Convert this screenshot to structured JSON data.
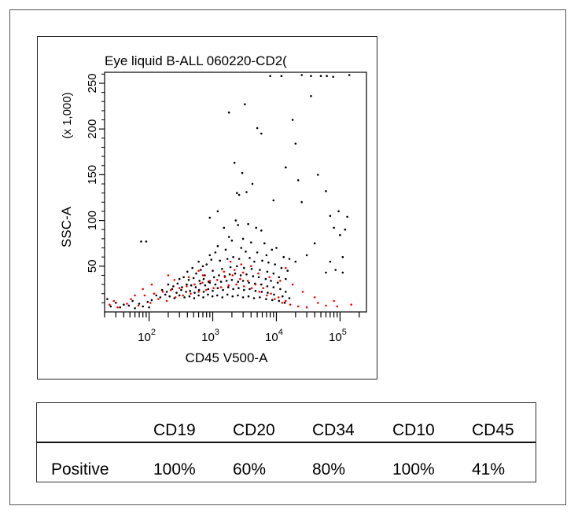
{
  "chart_data": {
    "type": "scatter",
    "title": "Eye liquid  B-ALL 060220-CD2(",
    "xlabel": "CD45 V500-A",
    "ylabel": "SSC-A",
    "y_multiplier": "(x 1,000)",
    "x_scale": "log",
    "xlim": [
      20,
      260000
    ],
    "ylim": [
      0,
      262
    ],
    "x_ticks": [
      {
        "value": 100,
        "base": "10",
        "exp": "2"
      },
      {
        "value": 1000,
        "base": "10",
        "exp": "3"
      },
      {
        "value": 10000,
        "base": "10",
        "exp": "4"
      },
      {
        "value": 100000,
        "base": "10",
        "exp": "5"
      }
    ],
    "y_ticks": [
      "50",
      "100",
      "150",
      "200",
      "250"
    ],
    "y_tick_values": [
      50,
      100,
      150,
      200,
      250
    ],
    "grid": false,
    "legend": "none",
    "series": [
      {
        "color": "#000000",
        "marker": "dot",
        "points": [
          [
            35000,
            258
          ],
          [
            50000,
            258
          ],
          [
            62000,
            258
          ],
          [
            78000,
            257
          ],
          [
            8000,
            258
          ],
          [
            12000,
            258
          ],
          [
            25000,
            259
          ],
          [
            140000,
            259
          ],
          [
            1800,
            218
          ],
          [
            3200,
            227
          ],
          [
            5000,
            201
          ],
          [
            5800,
            195
          ],
          [
            18000,
            210
          ],
          [
            20000,
            184
          ],
          [
            35000,
            236
          ],
          [
            900,
            103
          ],
          [
            1200,
            110
          ],
          [
            2200,
            163
          ],
          [
            2900,
            152
          ],
          [
            2400,
            130
          ],
          [
            2600,
            128
          ],
          [
            3400,
            131
          ],
          [
            4200,
            140
          ],
          [
            9000,
            122
          ],
          [
            14000,
            158
          ],
          [
            22000,
            144
          ],
          [
            45000,
            150
          ],
          [
            25000,
            120
          ],
          [
            60000,
            132
          ],
          [
            70000,
            105
          ],
          [
            95000,
            110
          ],
          [
            130000,
            104
          ],
          [
            80000,
            92
          ],
          [
            100000,
            84
          ],
          [
            120000,
            90
          ],
          [
            110000,
            60
          ],
          [
            70000,
            55
          ],
          [
            85000,
            46
          ],
          [
            60000,
            43
          ],
          [
            110000,
            43
          ],
          [
            40000,
            75
          ],
          [
            30000,
            62
          ],
          [
            75,
            77
          ],
          [
            90,
            77
          ],
          [
            1500,
            92
          ],
          [
            1800,
            82
          ],
          [
            2300,
            100
          ],
          [
            2500,
            95
          ],
          [
            3600,
            96
          ],
          [
            4800,
            92
          ],
          [
            5800,
            89
          ],
          [
            2000,
            78
          ],
          [
            3000,
            80
          ],
          [
            4000,
            76
          ],
          [
            6500,
            75
          ],
          [
            1200,
            72
          ],
          [
            1100,
            65
          ],
          [
            900,
            62
          ],
          [
            1600,
            68
          ],
          [
            2800,
            70
          ],
          [
            3300,
            66
          ],
          [
            5000,
            65
          ],
          [
            7000,
            62
          ],
          [
            8500,
            68
          ],
          [
            10000,
            70
          ],
          [
            13000,
            60
          ],
          [
            16000,
            58
          ],
          [
            20000,
            55
          ],
          [
            600,
            55
          ],
          [
            700,
            50
          ],
          [
            800,
            52
          ],
          [
            950,
            57
          ],
          [
            1300,
            56
          ],
          [
            1700,
            58
          ],
          [
            2100,
            60
          ],
          [
            2600,
            58
          ],
          [
            3800,
            59
          ],
          [
            4500,
            55
          ],
          [
            6000,
            56
          ],
          [
            7500,
            54
          ],
          [
            9500,
            52
          ],
          [
            12000,
            48
          ],
          [
            15000,
            45
          ],
          [
            400,
            44
          ],
          [
            480,
            48
          ],
          [
            550,
            42
          ],
          [
            650,
            46
          ],
          [
            750,
            40
          ],
          [
            1000,
            45
          ],
          [
            1400,
            47
          ],
          [
            1900,
            49
          ],
          [
            2400,
            50
          ],
          [
            3100,
            48
          ],
          [
            4100,
            47
          ],
          [
            5500,
            46
          ],
          [
            7200,
            44
          ],
          [
            9000,
            42
          ],
          [
            11000,
            38
          ],
          [
            14000,
            36
          ],
          [
            300,
            36
          ],
          [
            350,
            38
          ],
          [
            420,
            35
          ],
          [
            500,
            37
          ],
          [
            620,
            34
          ],
          [
            720,
            36
          ],
          [
            860,
            33
          ],
          [
            1050,
            38
          ],
          [
            1250,
            40
          ],
          [
            1550,
            39
          ],
          [
            1850,
            41
          ],
          [
            2250,
            42
          ],
          [
            2750,
            40
          ],
          [
            3400,
            41
          ],
          [
            4300,
            39
          ],
          [
            5300,
            38
          ],
          [
            6800,
            36
          ],
          [
            8200,
            34
          ],
          [
            10500,
            32
          ],
          [
            200,
            30
          ],
          [
            240,
            28
          ],
          [
            280,
            31
          ],
          [
            330,
            27
          ],
          [
            390,
            30
          ],
          [
            460,
            29
          ],
          [
            540,
            27
          ],
          [
            640,
            31
          ],
          [
            760,
            29
          ],
          [
            900,
            32
          ],
          [
            1100,
            30
          ],
          [
            1350,
            33
          ],
          [
            1650,
            34
          ],
          [
            2000,
            35
          ],
          [
            2500,
            33
          ],
          [
            3000,
            34
          ],
          [
            3700,
            32
          ],
          [
            4600,
            31
          ],
          [
            5800,
            30
          ],
          [
            7200,
            28
          ],
          [
            9000,
            27
          ],
          [
            11500,
            25
          ],
          [
            14000,
            22
          ],
          [
            160,
            24
          ],
          [
            190,
            22
          ],
          [
            230,
            25
          ],
          [
            270,
            21
          ],
          [
            320,
            24
          ],
          [
            380,
            22
          ],
          [
            440,
            23
          ],
          [
            520,
            21
          ],
          [
            610,
            24
          ],
          [
            720,
            22
          ],
          [
            850,
            25
          ],
          [
            1000,
            23
          ],
          [
            1200,
            26
          ],
          [
            1450,
            24
          ],
          [
            1750,
            27
          ],
          [
            2100,
            25
          ],
          [
            2550,
            26
          ],
          [
            3100,
            24
          ],
          [
            3800,
            25
          ],
          [
            4700,
            23
          ],
          [
            5900,
            22
          ],
          [
            7300,
            21
          ],
          [
            9200,
            19
          ],
          [
            12500,
            17
          ],
          [
            16000,
            15
          ],
          [
            130,
            18
          ],
          [
            150,
            16
          ],
          [
            180,
            19
          ],
          [
            210,
            17
          ],
          [
            250,
            15
          ],
          [
            300,
            18
          ],
          [
            360,
            16
          ],
          [
            430,
            17
          ],
          [
            510,
            15
          ],
          [
            600,
            18
          ],
          [
            710,
            16
          ],
          [
            840,
            19
          ],
          [
            990,
            17
          ],
          [
            1180,
            18
          ],
          [
            1420,
            16
          ],
          [
            1700,
            19
          ],
          [
            2050,
            17
          ],
          [
            2480,
            18
          ],
          [
            3000,
            16
          ],
          [
            3650,
            17
          ],
          [
            4450,
            15
          ],
          [
            5500,
            16
          ],
          [
            6900,
            14
          ],
          [
            8600,
            13
          ],
          [
            11000,
            12
          ],
          [
            13500,
            10
          ],
          [
            22,
            14
          ],
          [
            30,
            10
          ],
          [
            40,
            8
          ],
          [
            55,
            12
          ],
          [
            70,
            9
          ],
          [
            95,
            11
          ],
          [
            110,
            13
          ],
          [
            25,
            6
          ],
          [
            35,
            5
          ],
          [
            48,
            7
          ],
          [
            60,
            4
          ],
          [
            80,
            6
          ],
          [
            100,
            5
          ]
        ]
      },
      {
        "color": "#ff0000",
        "marker": "dot",
        "points": [
          [
            24,
            8
          ],
          [
            28,
            12
          ],
          [
            32,
            5
          ],
          [
            45,
            9
          ],
          [
            52,
            14
          ],
          [
            68,
            7
          ],
          [
            85,
            18
          ],
          [
            105,
            10
          ],
          [
            120,
            20
          ],
          [
            140,
            14
          ],
          [
            165,
            22
          ],
          [
            190,
            12
          ],
          [
            220,
            24
          ],
          [
            260,
            16
          ],
          [
            300,
            26
          ],
          [
            340,
            18
          ],
          [
            390,
            28
          ],
          [
            450,
            20
          ],
          [
            520,
            30
          ],
          [
            600,
            22
          ],
          [
            690,
            32
          ],
          [
            790,
            24
          ],
          [
            900,
            34
          ],
          [
            1030,
            26
          ],
          [
            1180,
            35
          ],
          [
            1350,
            27
          ],
          [
            1550,
            38
          ],
          [
            1780,
            29
          ],
          [
            2050,
            40
          ],
          [
            2350,
            30
          ],
          [
            2700,
            36
          ],
          [
            3100,
            28
          ],
          [
            3550,
            34
          ],
          [
            4100,
            26
          ],
          [
            4700,
            30
          ],
          [
            5400,
            22
          ],
          [
            6200,
            26
          ],
          [
            7100,
            18
          ],
          [
            8200,
            20
          ],
          [
            9400,
            14
          ],
          [
            10800,
            16
          ],
          [
            12400,
            10
          ],
          [
            14000,
            12
          ],
          [
            16500,
            8
          ],
          [
            22000,
            6
          ],
          [
            30000,
            5
          ],
          [
            45000,
            10
          ],
          [
            60000,
            7
          ],
          [
            90000,
            6
          ],
          [
            150000,
            8
          ],
          [
            700,
            40
          ],
          [
            1500,
            44
          ],
          [
            2200,
            46
          ],
          [
            3000,
            43
          ],
          [
            5200,
            42
          ],
          [
            7800,
            38
          ],
          [
            11500,
            34
          ],
          [
            2800,
            52
          ],
          [
            1900,
            55
          ],
          [
            4000,
            50
          ],
          [
            14000,
            48
          ],
          [
            18000,
            30
          ],
          [
            26000,
            22
          ],
          [
            40000,
            16
          ],
          [
            80000,
            12
          ],
          [
            200,
            40
          ],
          [
            250,
            35
          ],
          [
            600,
            45
          ],
          [
            420,
            38
          ],
          [
            110,
            30
          ],
          [
            80,
            25
          ],
          [
            60,
            18
          ]
        ]
      }
    ]
  },
  "table": {
    "headers": [
      "CD19",
      "CD20",
      "CD34",
      "CD10",
      "CD45"
    ],
    "row_label": "Positive",
    "values": [
      "100%",
      "60%",
      "80%",
      "100%",
      "41%"
    ]
  }
}
